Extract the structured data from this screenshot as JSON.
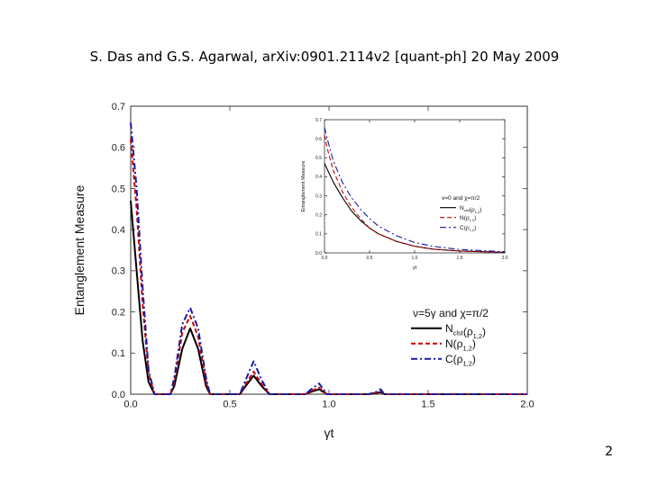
{
  "header": "S. Das and G.S. Agarwal, arXiv:0901.2114v2 [quant-ph] 20 May 2009",
  "page_number": "2",
  "chart_data": [
    {
      "type": "line",
      "title": "",
      "xlabel": "γt",
      "ylabel": "Entanglement Measure",
      "xlim": [
        0.0,
        2.0
      ],
      "ylim": [
        0.0,
        0.7
      ],
      "xticks": [
        "0.0",
        "0.5",
        "1.0",
        "1.5",
        "2.0"
      ],
      "yticks": [
        "0.0",
        "0.1",
        "0.2",
        "0.3",
        "0.4",
        "0.5",
        "0.6",
        "0.7"
      ],
      "legend_title": "ν=5γ and χ=π/2",
      "legend_position": "bottom-right",
      "grid": false,
      "series": [
        {
          "name": "N_clst(ρ_1,2)",
          "color": "#000000",
          "style": "solid",
          "x": [
            0,
            0.03,
            0.06,
            0.09,
            0.12,
            0.13,
            0.2,
            0.22,
            0.26,
            0.3,
            0.34,
            0.38,
            0.4,
            0.55,
            0.58,
            0.62,
            0.66,
            0.7,
            0.88,
            0.91,
            0.95,
            0.99,
            1.2,
            1.24,
            1.26,
            1.28,
            2.0
          ],
          "y": [
            0.47,
            0.3,
            0.13,
            0.03,
            0.0,
            0.0,
            0.0,
            0.02,
            0.11,
            0.16,
            0.11,
            0.02,
            0.0,
            0.0,
            0.02,
            0.045,
            0.02,
            0.0,
            0.0,
            0.006,
            0.012,
            0.0,
            0.0,
            0.003,
            0.005,
            0.0,
            0.0
          ]
        },
        {
          "name": "N(ρ_1,2)",
          "color": "#cc0000",
          "style": "dashed",
          "x": [
            0,
            0.03,
            0.06,
            0.09,
            0.12,
            0.13,
            0.2,
            0.22,
            0.26,
            0.3,
            0.34,
            0.38,
            0.4,
            0.55,
            0.58,
            0.62,
            0.66,
            0.7,
            0.88,
            0.91,
            0.95,
            0.99,
            1.2,
            1.24,
            1.26,
            1.28,
            2.0
          ],
          "y": [
            0.62,
            0.45,
            0.22,
            0.05,
            0.0,
            0.0,
            0.0,
            0.03,
            0.15,
            0.19,
            0.14,
            0.03,
            0.0,
            0.0,
            0.025,
            0.055,
            0.025,
            0.0,
            0.0,
            0.008,
            0.016,
            0.0,
            0.0,
            0.004,
            0.008,
            0.0,
            0.0
          ]
        },
        {
          "name": "C(ρ_1,2)",
          "color": "#1a1aa8",
          "style": "dashdot",
          "x": [
            0,
            0.03,
            0.06,
            0.09,
            0.12,
            0.13,
            0.2,
            0.22,
            0.26,
            0.3,
            0.34,
            0.38,
            0.4,
            0.55,
            0.58,
            0.62,
            0.66,
            0.7,
            0.88,
            0.91,
            0.95,
            0.99,
            1.2,
            1.24,
            1.26,
            1.28,
            2.0
          ],
          "y": [
            0.66,
            0.5,
            0.26,
            0.06,
            0.0,
            0.0,
            0.0,
            0.04,
            0.17,
            0.21,
            0.16,
            0.04,
            0.0,
            0.0,
            0.035,
            0.08,
            0.035,
            0.0,
            0.0,
            0.012,
            0.026,
            0.0,
            0.0,
            0.006,
            0.012,
            0.0,
            0.0
          ]
        }
      ]
    },
    {
      "type": "line",
      "title": "",
      "xlabel": "γt",
      "ylabel": "Entanglement Measure",
      "xlim": [
        0.0,
        2.0
      ],
      "ylim": [
        0.0,
        0.7
      ],
      "xticks": [
        "0.0",
        "0.5",
        "1.0",
        "1.5",
        "2.0"
      ],
      "yticks": [
        "0.0",
        "0.1",
        "0.2",
        "0.3",
        "0.4",
        "0.5",
        "0.6",
        "0.7"
      ],
      "legend_title": "ν=0 and χ=π/2",
      "legend_position": "right",
      "grid": false,
      "series": [
        {
          "name": "N_clst(ρ_1,2)",
          "color": "#000000",
          "style": "solid",
          "x": [
            0,
            0.1,
            0.2,
            0.3,
            0.4,
            0.5,
            0.6,
            0.8,
            1.0,
            1.2,
            1.5,
            2.0
          ],
          "y": [
            0.47,
            0.37,
            0.29,
            0.22,
            0.17,
            0.13,
            0.1,
            0.06,
            0.035,
            0.02,
            0.01,
            0.003
          ]
        },
        {
          "name": "N(ρ_1,2)",
          "color": "#cc0000",
          "style": "dashed",
          "x": [
            0,
            0.03,
            0.1,
            0.2,
            0.3,
            0.4,
            0.5,
            0.6,
            0.8,
            1.0,
            1.2,
            1.5,
            2.0
          ],
          "y": [
            0.62,
            0.55,
            0.43,
            0.32,
            0.24,
            0.18,
            0.13,
            0.1,
            0.06,
            0.035,
            0.02,
            0.01,
            0.003
          ]
        },
        {
          "name": "C(ρ_1,2)",
          "color": "#1a1aa8",
          "style": "dashdot",
          "x": [
            0,
            0.03,
            0.1,
            0.2,
            0.3,
            0.4,
            0.5,
            0.6,
            0.8,
            1.0,
            1.2,
            1.5,
            2.0
          ],
          "y": [
            0.66,
            0.6,
            0.48,
            0.37,
            0.29,
            0.23,
            0.18,
            0.14,
            0.09,
            0.055,
            0.035,
            0.018,
            0.006
          ]
        }
      ]
    }
  ]
}
